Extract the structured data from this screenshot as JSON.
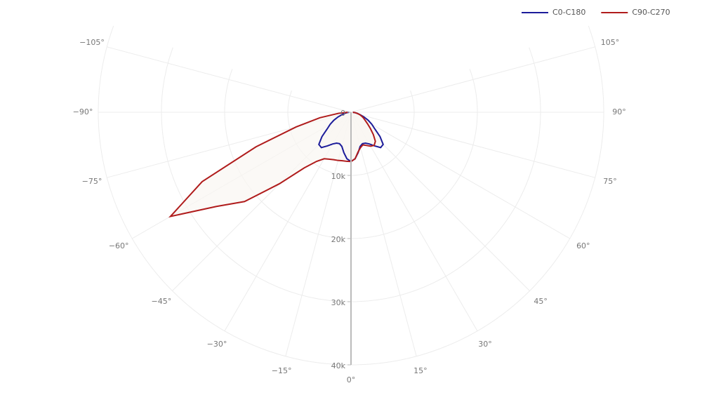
{
  "chart_data": {
    "type": "polar",
    "theta": [
      -90,
      -85,
      -80,
      -75,
      -70,
      -65,
      -60,
      -55,
      -50,
      -45,
      -40,
      -35,
      -30,
      -25,
      -20,
      -15,
      -10,
      -5,
      0,
      5,
      10,
      15,
      20,
      25,
      30,
      35,
      40,
      45,
      50,
      55,
      60,
      65,
      70,
      75,
      80,
      85,
      90
    ],
    "series": [
      {
        "name": "C0-C180",
        "color": "#1c1c9a",
        "values": [
          300,
          600,
          1000,
          1500,
          2200,
          3000,
          3800,
          4600,
          6000,
          7200,
          7300,
          6500,
          5800,
          5400,
          5300,
          5600,
          6500,
          7400,
          7800,
          7400,
          6500,
          5600,
          5300,
          5400,
          5800,
          6500,
          7300,
          7200,
          6000,
          4600,
          3800,
          3000,
          2200,
          1500,
          1000,
          600,
          300
        ]
      },
      {
        "name": "C90-C270",
        "color": "#b01c1c",
        "values": [
          500,
          2000,
          5000,
          9000,
          16000,
          26000,
          33000,
          26000,
          22000,
          16000,
          11500,
          9500,
          8500,
          8200,
          8000,
          7900,
          7800,
          7800,
          7800,
          7400,
          6400,
          5800,
          5500,
          5800,
          6200,
          6400,
          6000,
          5000,
          4000,
          3200,
          2600,
          2200,
          1800,
          1400,
          1000,
          600,
          300
        ]
      }
    ],
    "rlim": [
      0,
      40000
    ],
    "rticks": [
      0,
      {
        "value": 10000,
        "label": "10k"
      },
      {
        "value": 20000,
        "label": "20k"
      },
      {
        "value": 30000,
        "label": "30k"
      },
      {
        "value": 40000,
        "label": "40k"
      }
    ],
    "thetalim": [
      -110,
      110
    ],
    "thetaticks": [
      {
        "value": -105,
        "label": "−105°"
      },
      {
        "value": -90,
        "label": "−90°"
      },
      {
        "value": -75,
        "label": "−75°"
      },
      {
        "value": -60,
        "label": "−60°"
      },
      {
        "value": -45,
        "label": "−45°"
      },
      {
        "value": -30,
        "label": "−30°"
      },
      {
        "value": -15,
        "label": "−15°"
      },
      {
        "value": 0,
        "label": "0°"
      },
      {
        "value": 15,
        "label": "15°"
      },
      {
        "value": 30,
        "label": "30°"
      },
      {
        "value": 45,
        "label": "45°"
      },
      {
        "value": 60,
        "label": "60°"
      },
      {
        "value": 75,
        "label": "75°"
      },
      {
        "value": 90,
        "label": "90°"
      },
      {
        "value": 105,
        "label": "105°"
      }
    ],
    "fill": "#f9f7f2",
    "grid": true
  }
}
